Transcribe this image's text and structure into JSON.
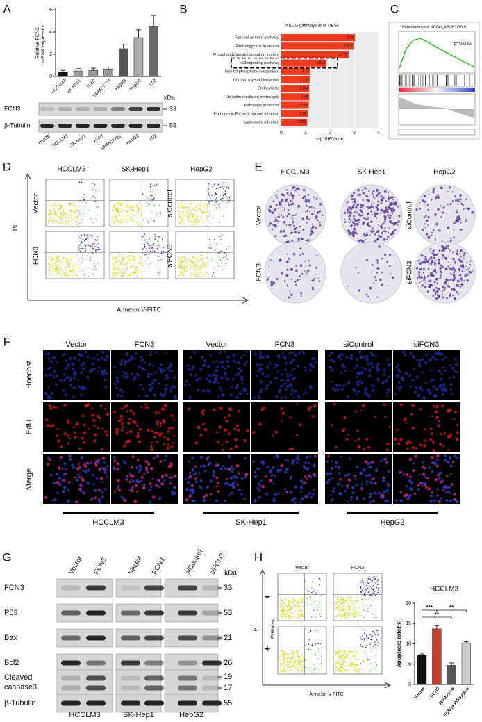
{
  "panel_labels": [
    "A",
    "B",
    "C",
    "D",
    "E",
    "F",
    "G",
    "H"
  ],
  "chart_data": [
    {
      "type": "bar",
      "ylabel": [
        "Relative FCN3",
        "mRNA expression"
      ],
      "categories": [
        "HCCLM3",
        "SK-Hep1",
        "Huh7",
        "SMMC7721",
        "Hep3B",
        "HepG2",
        "L02"
      ],
      "values": [
        0.4,
        0.5,
        0.55,
        0.6,
        2.5,
        3.5,
        4.5
      ],
      "errors": [
        0.15,
        0.2,
        0.2,
        0.25,
        0.4,
        0.7,
        1.0
      ],
      "colors": [
        "#111111",
        "#9a9a9a",
        "#9a9a9a",
        "#9a9a9a",
        "#555555",
        "#aaaaaa",
        "#6a6a6a"
      ],
      "ylim": [
        0,
        6
      ],
      "yticks": [
        0,
        2,
        4,
        6
      ]
    },
    {
      "type": "barh",
      "title": "KEGG pathways of all DEGs",
      "xlabel": "-log10(PValue)",
      "categories": [
        "Fanconi anemia pathway",
        "Proteoglycans in cancer",
        "Phosphatidylinositol signaling system",
        "p53 signaling pathway",
        "Inositol phosphate metabolism",
        "Chronic myeloid leukemia",
        "Endocytosis",
        "Ubiquitin mediated proteolysis",
        "Pathways in cancer",
        "Pathogenic Escherichia coli infection",
        "Salmonella infection"
      ],
      "values": [
        3.03,
        2.974,
        2.772,
        1.863,
        1.19,
        1.175,
        1.154,
        1.15,
        1.133,
        1.09,
        1.065
      ],
      "color": "#ee3a1f",
      "xlim": [
        0,
        4
      ],
      "xticks": [
        0,
        1,
        2,
        3,
        4
      ],
      "grid": true
    },
    {
      "type": "bar",
      "title": "HCCLM3",
      "ylabel": "Apoptosis rate(%)",
      "categories": [
        "Vector",
        "FCN3",
        "Pifithrin-α",
        "FCN3+ Pifithrin-α"
      ],
      "values": [
        7.2,
        13.7,
        4.7,
        10.1
      ],
      "errors": [
        0.3,
        0.8,
        0.6,
        0.4
      ],
      "colors": [
        "#111111",
        "#c0402e",
        "#555555",
        "#cccccc"
      ],
      "ylim": [
        0,
        20
      ],
      "yticks": [
        0,
        5,
        10,
        15,
        20
      ],
      "significance": [
        "***",
        "**",
        "**"
      ]
    }
  ],
  "blot_a": {
    "kda": "kDa",
    "rows": [
      {
        "name": "FCN3",
        "size": "33"
      },
      {
        "name": "β-Tubulin",
        "size": "55"
      }
    ],
    "lanes": [
      "Hep3B",
      "HCCLM3",
      "SK-Hep1",
      "Huh7",
      "SMMC7721",
      "HepG2",
      "L02"
    ]
  },
  "gsea": {
    "title": "Enrichment plot: KEGG_APOPTOSIS",
    "p": "p=0.035"
  },
  "flow_d": {
    "columns": [
      "HCCLM3",
      "SK-Hep1",
      "HepG2"
    ],
    "rows_left": [
      "Vector",
      "FCN3"
    ],
    "rows_right": [
      "siControl",
      "siFCN3"
    ],
    "y_axis": "PI",
    "x_axis": "Annexin V-FITC"
  },
  "colony_e": {
    "columns": [
      "HCCLM3",
      "SK-Hep1",
      "HepG2"
    ],
    "rows_left": [
      "Vector",
      "FCN3"
    ],
    "rows_right": [
      "siControl",
      "siFCN3"
    ]
  },
  "edu_f": {
    "columns": [
      "Vector",
      "FCN3",
      "Vector",
      "FCN3",
      "siControl",
      "siFCN3"
    ],
    "rows": [
      "Hoechst",
      "EdU",
      "Merge"
    ],
    "groups": [
      "HCCLM3",
      "SK-Hep1",
      "HepG2"
    ]
  },
  "blot_g": {
    "lanes": [
      "Vector",
      "FCN3",
      "Vector",
      "FCN3",
      "siControl",
      "siFCN3"
    ],
    "kda": "kDa",
    "rows": [
      {
        "name": [
          "FCN3"
        ],
        "sizes": [
          "33"
        ]
      },
      {
        "name": [
          "P53"
        ],
        "sizes": [
          "53"
        ]
      },
      {
        "name": [
          "Bax"
        ],
        "sizes": [
          "21"
        ]
      },
      {
        "name": [
          "Bcl2"
        ],
        "sizes": [
          "26"
        ]
      },
      {
        "name": [
          "Cleaved",
          "caspase3"
        ],
        "sizes": [
          "19",
          "17"
        ]
      },
      {
        "name": [
          "β-Tubulin"
        ],
        "sizes": [
          "55"
        ]
      }
    ],
    "groups": [
      "HCCLM3",
      "SK-Hep1",
      "HepG2"
    ]
  },
  "flow_h": {
    "columns": [
      "Vector",
      "FCN3"
    ],
    "treatment": "Pifithrin-α",
    "rows": [
      "−",
      "+"
    ],
    "y_axis": "PI",
    "x_axis": "Annexin V-FITC"
  }
}
